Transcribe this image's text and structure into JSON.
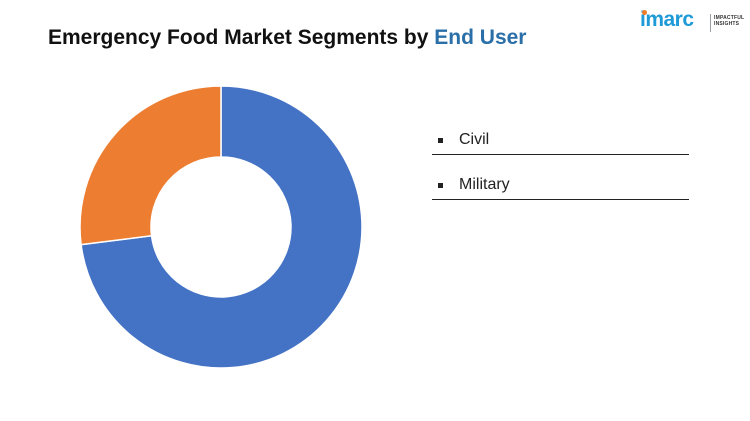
{
  "header": {
    "title_prefix": "Emergency Food Market Segments by ",
    "title_highlight": "End User"
  },
  "logo": {
    "word": "imarc",
    "tagline": "IMPACTFUL\nINSIGHTS"
  },
  "colors": {
    "civil": "#4472c4",
    "military": "#ed7d31",
    "title_accent": "#2a6fa8",
    "logo_blue": "#1e9ad6",
    "logo_orange": "#f07c2a"
  },
  "chart_data": {
    "type": "pie",
    "variant": "donut",
    "title": "Emergency Food Market Segments by End User",
    "categories": [
      "Civil",
      "Military"
    ],
    "values": [
      73,
      27
    ],
    "unit": "%",
    "legend_position": "right"
  },
  "legend": [
    {
      "label": "Civil"
    },
    {
      "label": "Military"
    }
  ]
}
